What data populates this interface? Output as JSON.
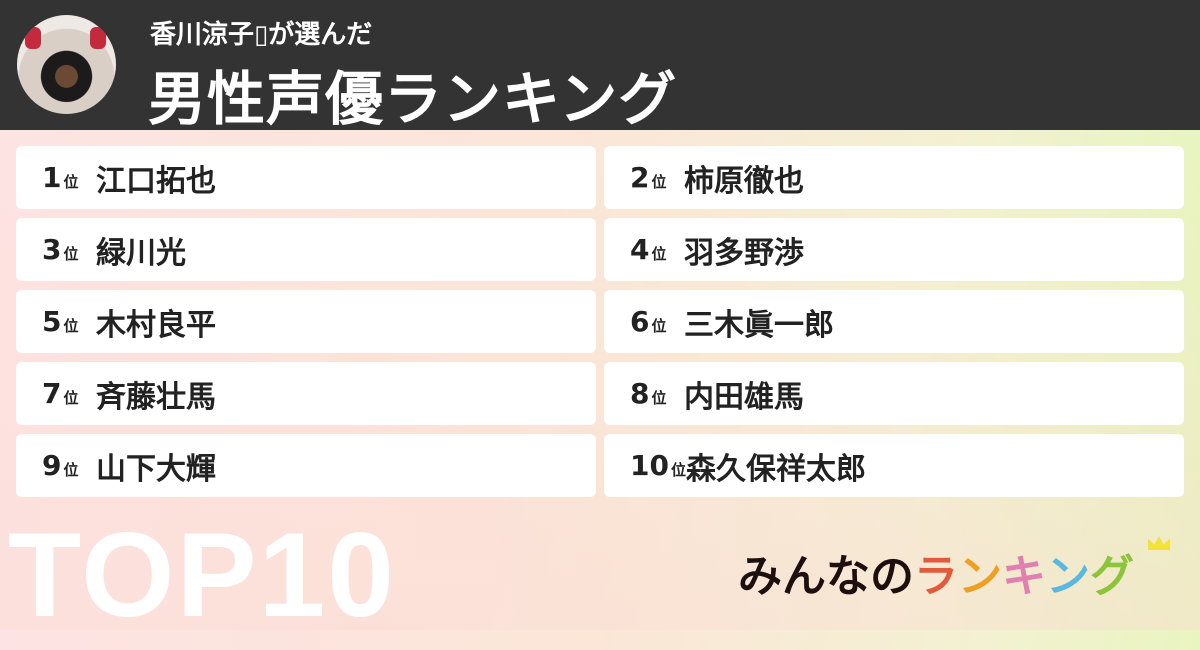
{
  "header": {
    "subtitle": "香川涼子▯が選んだ",
    "title": "男性声優ランキング"
  },
  "rank_suffix": "位",
  "items": [
    {
      "rank": "1",
      "name": "江口拓也"
    },
    {
      "rank": "2",
      "name": "柿原徹也"
    },
    {
      "rank": "3",
      "name": "緑川光"
    },
    {
      "rank": "4",
      "name": "羽多野渉"
    },
    {
      "rank": "5",
      "name": "木村良平"
    },
    {
      "rank": "6",
      "name": "三木眞一郎"
    },
    {
      "rank": "7",
      "name": "斉藤壮馬"
    },
    {
      "rank": "8",
      "name": "内田雄馬"
    },
    {
      "rank": "9",
      "name": "山下大輝"
    },
    {
      "rank": "10",
      "name": "森久保祥太郎"
    }
  ],
  "badge": "TOP10",
  "logo": {
    "text": "みんなのランキング",
    "chars": [
      {
        "c": "み",
        "color": "#1e0f0f"
      },
      {
        "c": "ん",
        "color": "#1e0f0f"
      },
      {
        "c": "な",
        "color": "#1e0f0f"
      },
      {
        "c": "の",
        "color": "#1e0f0f"
      },
      {
        "c": "ラ",
        "color": "#e25a3a"
      },
      {
        "c": "ン",
        "color": "#eea024"
      },
      {
        "c": "キ",
        "color": "#e07fb0"
      },
      {
        "c": "ン",
        "color": "#5ab8e0"
      },
      {
        "c": "グ",
        "color": "#8cc43a"
      }
    ]
  }
}
